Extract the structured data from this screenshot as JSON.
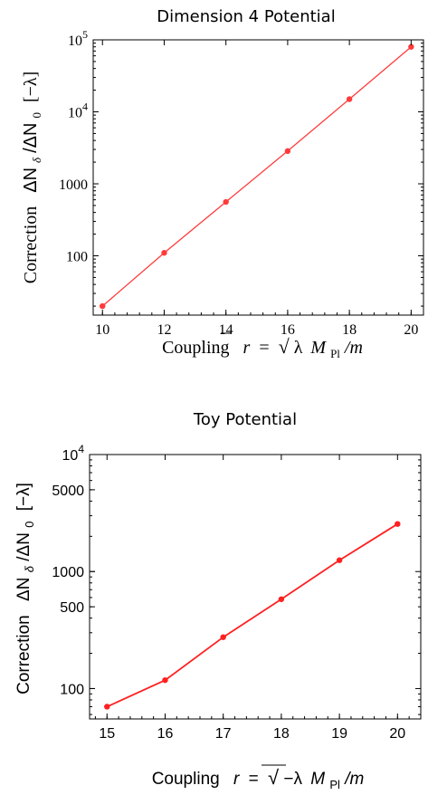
{
  "chart_data": [
    {
      "type": "line",
      "title": "Dimension 4 Potential",
      "xlabel": "Coupling  r = √λ M_Pl/m",
      "xlabel_parts": {
        "word": "Coupling",
        "r": "r",
        "eq": "=",
        "sqrt": "√",
        "lambda": "λ",
        "M": "M",
        "sub": "Pl",
        "slash_m": "/m"
      },
      "ylabel": "Correction  ΔN_δ/ΔN_0 [−λ]",
      "ylabel_parts": {
        "word": "Correction",
        "num": "ΔN",
        "num_sub": "δ",
        "slash": "/ΔN",
        "den_sub": "0",
        "bracket": "[−λ]"
      },
      "yscale": "log",
      "xlim": [
        9.7,
        20.4
      ],
      "ylim": [
        15,
        100000
      ],
      "xticks": [
        10,
        12,
        14,
        16,
        18,
        20
      ],
      "xtick_labels": [
        "10",
        "12",
        "14",
        "16",
        "18",
        "20"
      ],
      "yticks": [
        100,
        1000,
        10000,
        100000
      ],
      "ytick_labels": [
        {
          "base": "100",
          "exp": ""
        },
        {
          "base": "1000",
          "exp": ""
        },
        {
          "base": "10",
          "exp": "4"
        },
        {
          "base": "10",
          "exp": "5"
        }
      ],
      "series": [
        {
          "x": [
            10,
            12,
            14,
            16,
            18,
            20
          ],
          "values": [
            20,
            110,
            560,
            2850,
            15000,
            80000
          ]
        }
      ],
      "color": "#ff3b3b",
      "grid": false
    },
    {
      "type": "line",
      "title": "Toy Potential",
      "xlabel": "Coupling  r = √−λ M_Pl/m",
      "xlabel_parts": {
        "word": "Coupling",
        "r": "r",
        "eq": "=",
        "sqrt": "√",
        "lambda": "−λ",
        "M": "M",
        "sub": "Pl",
        "slash_m": "/m"
      },
      "ylabel": "Correction  ΔN_δ/ΔN_0 [−λ]",
      "ylabel_parts": {
        "word": "Correction",
        "num": "ΔN",
        "num_sub": "δ",
        "slash": "/ΔN",
        "den_sub": "0",
        "bracket": "[−λ]"
      },
      "yscale": "log",
      "xlim": [
        14.7,
        20.4
      ],
      "ylim": [
        55,
        10000
      ],
      "xticks": [
        15,
        16,
        17,
        18,
        19,
        20
      ],
      "xtick_labels": [
        "15",
        "16",
        "17",
        "18",
        "19",
        "20"
      ],
      "yticks": [
        100,
        500,
        1000,
        5000,
        10000
      ],
      "ytick_labels": [
        {
          "base": "100",
          "exp": ""
        },
        {
          "base": "500",
          "exp": ""
        },
        {
          "base": "1000",
          "exp": ""
        },
        {
          "base": "5000",
          "exp": ""
        },
        {
          "base": "10",
          "exp": "4"
        }
      ],
      "series": [
        {
          "x": [
            15,
            16,
            17,
            18,
            19,
            20
          ],
          "values": [
            70,
            118,
            275,
            580,
            1250,
            2550
          ]
        }
      ],
      "color": "#ff2020",
      "grid": false
    }
  ]
}
